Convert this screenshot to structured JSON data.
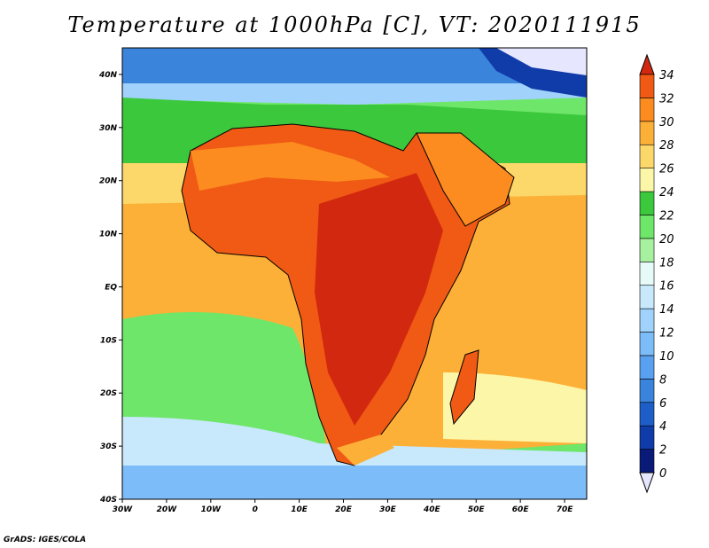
{
  "title": "Temperature at 1000hPa [C], VT: 2020111915",
  "credit": "GrADS: IGES/COLA",
  "map": {
    "lon_range": [
      -30,
      75
    ],
    "lat_range": [
      -40,
      45
    ],
    "lon_ticks": [
      {
        "value": -30,
        "label": "30W"
      },
      {
        "value": -20,
        "label": "20W"
      },
      {
        "value": -10,
        "label": "10W"
      },
      {
        "value": 0,
        "label": "0"
      },
      {
        "value": 10,
        "label": "10E"
      },
      {
        "value": 20,
        "label": "20E"
      },
      {
        "value": 30,
        "label": "30E"
      },
      {
        "value": 40,
        "label": "40E"
      },
      {
        "value": 50,
        "label": "50E"
      },
      {
        "value": 60,
        "label": "60E"
      },
      {
        "value": 70,
        "label": "70E"
      }
    ],
    "lat_ticks": [
      {
        "value": 40,
        "label": "40N"
      },
      {
        "value": 30,
        "label": "30N"
      },
      {
        "value": 20,
        "label": "20N"
      },
      {
        "value": 10,
        "label": "10N"
      },
      {
        "value": 0,
        "label": "EQ"
      },
      {
        "value": -10,
        "label": "10S"
      },
      {
        "value": -20,
        "label": "20S"
      },
      {
        "value": -30,
        "label": "30S"
      },
      {
        "value": -40,
        "label": "40S"
      }
    ]
  },
  "colorbar": {
    "levels": [
      "0",
      "2",
      "4",
      "6",
      "8",
      "10",
      "12",
      "14",
      "16",
      "18",
      "20",
      "22",
      "24",
      "26",
      "28",
      "30",
      "32",
      "34"
    ],
    "colors": [
      "#e6e6ff",
      "#0a1a78",
      "#0f3ca8",
      "#1e5ec8",
      "#3a84dc",
      "#5aa0f0",
      "#7cbcf8",
      "#a0d2fc",
      "#c8e8fc",
      "#e6fbf8",
      "#a6f0a0",
      "#6ee66a",
      "#3cc83c",
      "#fcf7a8",
      "#fcd76a",
      "#fcb038",
      "#fc8c20",
      "#f05a14",
      "#d22810"
    ],
    "unit": "C"
  }
}
